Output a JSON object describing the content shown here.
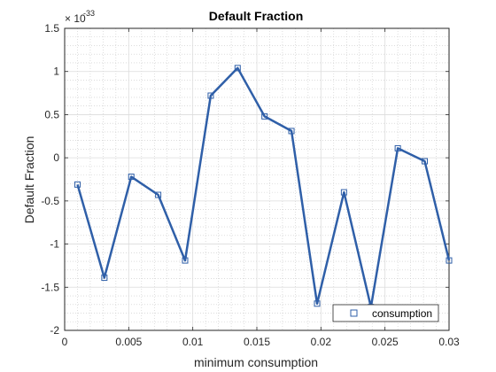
{
  "chart_data": {
    "type": "line",
    "title": "Default Fraction",
    "xlabel": "minimum consumption",
    "ylabel": "Default Fraction",
    "y_exponent_label": "× 10⁻³³",
    "y_exponent_base": "× 10",
    "y_exponent_power": "-33",
    "xlim": [
      0,
      0.03
    ],
    "ylim": [
      -2,
      1.5
    ],
    "x_ticks": [
      0,
      0.005,
      0.01,
      0.015,
      0.02,
      0.025,
      0.03
    ],
    "x_tick_labels": [
      "0",
      "0.005",
      "0.01",
      "0.015",
      "0.02",
      "0.025",
      "0.03"
    ],
    "y_ticks": [
      -2,
      -1.5,
      -1,
      -0.5,
      0,
      0.5,
      1,
      1.5
    ],
    "y_tick_labels": [
      "-2",
      "-1.5",
      "-1",
      "-0.5",
      "0",
      "0.5",
      "1",
      "1.5"
    ],
    "grid": true,
    "minor_grid": true,
    "legend_location": "bottom-right",
    "series": [
      {
        "name": "consumption",
        "color": "#2f5fa8",
        "marker": "square",
        "x": [
          0.001,
          0.0031,
          0.0052,
          0.0073,
          0.0094,
          0.0114,
          0.0135,
          0.0156,
          0.0177,
          0.0197,
          0.0218,
          0.0239,
          0.026,
          0.0281,
          0.03
        ],
        "y": [
          -0.31,
          -1.39,
          -0.22,
          -0.43,
          -1.19,
          0.72,
          1.04,
          0.48,
          0.31,
          -1.69,
          -0.4,
          -1.73,
          0.11,
          -0.04,
          -1.19
        ]
      }
    ]
  }
}
